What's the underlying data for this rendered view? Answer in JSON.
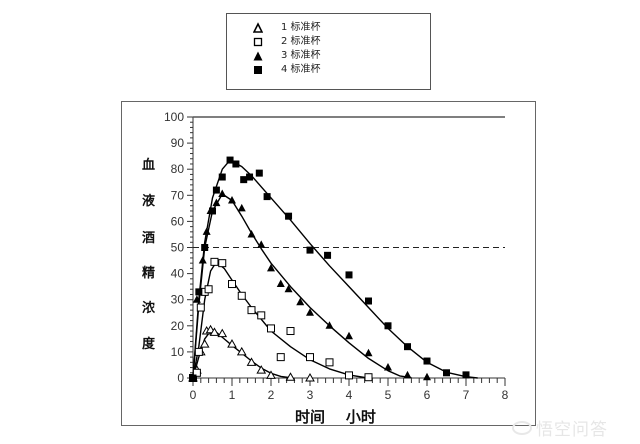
{
  "legend": {
    "items": [
      {
        "symbol": "open-triangle",
        "label": "1 标准杯"
      },
      {
        "symbol": "open-square",
        "label": "2 标准杯"
      },
      {
        "symbol": "filled-triangle",
        "label": "3 标准杯"
      },
      {
        "symbol": "filled-square",
        "label": "4 标准杯"
      }
    ]
  },
  "axes": {
    "ylabel_chars": [
      "血",
      "液",
      "酒",
      "精",
      "浓",
      "度"
    ],
    "xlabel": "时间    小时"
  },
  "watermark": "悟空问答",
  "chart_data": {
    "type": "scatter",
    "title": "",
    "xlabel": "时间 小时",
    "ylabel": "血液酒精浓度",
    "xlim": [
      0,
      8
    ],
    "ylim": [
      0,
      100
    ],
    "x_ticks": [
      0,
      1,
      2,
      3,
      4,
      5,
      6,
      7,
      8
    ],
    "y_ticks": [
      0,
      10,
      20,
      30,
      40,
      50,
      60,
      70,
      80,
      90,
      100
    ],
    "grid": false,
    "legend_position": "top, outside plot",
    "annotations": [
      {
        "type": "hline",
        "y": 50,
        "style": "dashed"
      }
    ],
    "series": [
      {
        "name": "1 标准杯",
        "marker": "open-triangle",
        "points": [
          [
            0,
            0
          ],
          [
            0.1,
            3
          ],
          [
            0.2,
            10
          ],
          [
            0.3,
            13
          ],
          [
            0.35,
            18
          ],
          [
            0.45,
            18.5
          ],
          [
            0.55,
            17.5
          ],
          [
            0.75,
            17
          ],
          [
            1.0,
            13
          ],
          [
            1.25,
            10
          ],
          [
            1.5,
            6
          ],
          [
            1.75,
            3
          ],
          [
            2.0,
            1
          ],
          [
            2.5,
            0.3
          ],
          [
            3.0,
            0
          ]
        ],
        "curve": [
          [
            0,
            0
          ],
          [
            0.15,
            8
          ],
          [
            0.3,
            15
          ],
          [
            0.45,
            18
          ],
          [
            0.6,
            17.5
          ],
          [
            0.8,
            15
          ],
          [
            1.0,
            12.5
          ],
          [
            1.25,
            9.5
          ],
          [
            1.5,
            6.5
          ],
          [
            1.75,
            3.8
          ],
          [
            2.0,
            1.8
          ],
          [
            2.25,
            0.6
          ],
          [
            2.5,
            0.1
          ]
        ]
      },
      {
        "name": "2 标准杯",
        "marker": "open-square",
        "points": [
          [
            0,
            0
          ],
          [
            0.1,
            2
          ],
          [
            0.15,
            10
          ],
          [
            0.2,
            27
          ],
          [
            0.3,
            33
          ],
          [
            0.4,
            34
          ],
          [
            0.55,
            44.5
          ],
          [
            0.75,
            44
          ],
          [
            1.0,
            36
          ],
          [
            1.25,
            31.5
          ],
          [
            1.5,
            26
          ],
          [
            1.75,
            24
          ],
          [
            2.0,
            19
          ],
          [
            2.25,
            8
          ],
          [
            2.5,
            18
          ],
          [
            3.0,
            8
          ],
          [
            3.5,
            6
          ],
          [
            4.0,
            1
          ],
          [
            4.5,
            0.3
          ]
        ],
        "curve": [
          [
            0,
            0
          ],
          [
            0.15,
            12
          ],
          [
            0.3,
            30
          ],
          [
            0.45,
            41
          ],
          [
            0.6,
            44.5
          ],
          [
            0.8,
            42
          ],
          [
            1.0,
            37.5
          ],
          [
            1.25,
            32
          ],
          [
            1.5,
            27
          ],
          [
            1.75,
            22.5
          ],
          [
            2.0,
            18
          ],
          [
            2.5,
            12
          ],
          [
            3.0,
            7
          ],
          [
            3.5,
            3.5
          ],
          [
            4.0,
            1.2
          ],
          [
            4.4,
            0.2
          ]
        ]
      },
      {
        "name": "3 标准杯",
        "marker": "filled-triangle",
        "points": [
          [
            0,
            0
          ],
          [
            0.1,
            30
          ],
          [
            0.25,
            45
          ],
          [
            0.35,
            56
          ],
          [
            0.45,
            64
          ],
          [
            0.6,
            67
          ],
          [
            0.75,
            70.5
          ],
          [
            1.0,
            68
          ],
          [
            1.25,
            65
          ],
          [
            1.5,
            55
          ],
          [
            1.75,
            51
          ],
          [
            2.0,
            42
          ],
          [
            2.25,
            36
          ],
          [
            2.45,
            34
          ],
          [
            2.75,
            29
          ],
          [
            3.0,
            25
          ],
          [
            3.5,
            20
          ],
          [
            4.0,
            16
          ],
          [
            4.5,
            9.5
          ],
          [
            5.0,
            4
          ],
          [
            5.5,
            1
          ],
          [
            6.0,
            0.3
          ]
        ],
        "curve": [
          [
            0,
            0
          ],
          [
            0.15,
            28
          ],
          [
            0.3,
            50
          ],
          [
            0.5,
            64
          ],
          [
            0.75,
            70.5
          ],
          [
            1.0,
            68
          ],
          [
            1.25,
            62
          ],
          [
            1.5,
            55.5
          ],
          [
            1.75,
            49.5
          ],
          [
            2.0,
            44
          ],
          [
            2.5,
            35
          ],
          [
            3.0,
            27
          ],
          [
            3.5,
            20
          ],
          [
            4.0,
            13.5
          ],
          [
            4.5,
            7.5
          ],
          [
            5.0,
            2.8
          ],
          [
            5.3,
            0.8
          ],
          [
            5.6,
            0.1
          ]
        ]
      },
      {
        "name": "4 标准杯",
        "marker": "filled-square",
        "points": [
          [
            0,
            0
          ],
          [
            0.15,
            33
          ],
          [
            0.3,
            50
          ],
          [
            0.5,
            64
          ],
          [
            0.6,
            72
          ],
          [
            0.75,
            77
          ],
          [
            0.95,
            83.5
          ],
          [
            1.1,
            82
          ],
          [
            1.3,
            76
          ],
          [
            1.45,
            77
          ],
          [
            1.7,
            78.5
          ],
          [
            1.9,
            69.5
          ],
          [
            2.45,
            62
          ],
          [
            3.0,
            49
          ],
          [
            3.45,
            47
          ],
          [
            4.0,
            39.5
          ],
          [
            4.5,
            29.5
          ],
          [
            5.0,
            20
          ],
          [
            5.5,
            12
          ],
          [
            6.0,
            6.5
          ],
          [
            6.5,
            2
          ],
          [
            7.0,
            1.2
          ]
        ],
        "curve": [
          [
            0,
            0
          ],
          [
            0.15,
            30
          ],
          [
            0.3,
            52
          ],
          [
            0.5,
            69
          ],
          [
            0.75,
            80
          ],
          [
            0.95,
            83.5
          ],
          [
            1.25,
            81
          ],
          [
            1.5,
            77.5
          ],
          [
            2.0,
            69
          ],
          [
            2.5,
            60.5
          ],
          [
            3.0,
            51.5
          ],
          [
            3.5,
            43
          ],
          [
            4.0,
            35
          ],
          [
            4.5,
            27
          ],
          [
            5.0,
            19
          ],
          [
            5.5,
            12
          ],
          [
            6.0,
            6
          ],
          [
            6.5,
            2.2
          ],
          [
            7.0,
            0.5
          ],
          [
            7.3,
            0
          ]
        ]
      }
    ]
  }
}
